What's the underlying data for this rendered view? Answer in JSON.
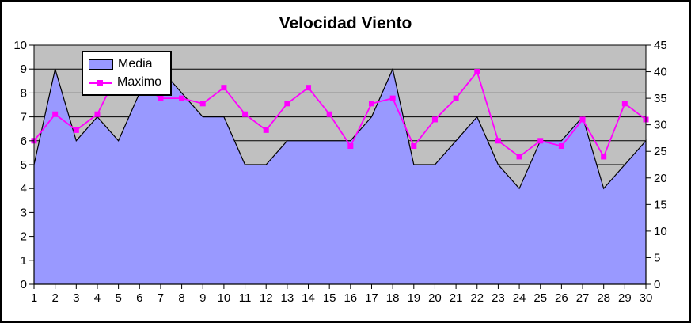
{
  "title": "Velocidad Viento",
  "legend": {
    "items": [
      {
        "label": "Media"
      },
      {
        "label": "Maximo"
      }
    ]
  },
  "colors": {
    "background": "#FFFFFF",
    "plot_background": "#C0C0C0",
    "grid": "#000000",
    "area_fill": "#9999FF",
    "area_outline": "#000000",
    "line": "#FF00FF",
    "text": "#000000"
  },
  "chart_data": {
    "type": "area",
    "title": "Velocidad Viento",
    "categories": [
      "1",
      "2",
      "3",
      "4",
      "5",
      "6",
      "7",
      "8",
      "9",
      "10",
      "11",
      "12",
      "13",
      "14",
      "15",
      "16",
      "17",
      "18",
      "19",
      "20",
      "21",
      "22",
      "23",
      "24",
      "25",
      "26",
      "27",
      "28",
      "29",
      "30"
    ],
    "series": [
      {
        "name": "Media",
        "type": "area",
        "axis": "left",
        "color": "#9999FF",
        "outline": "#000000",
        "values": [
          5,
          9,
          6,
          7,
          6,
          8,
          9,
          8,
          7,
          7,
          5,
          5,
          6,
          6,
          6,
          6,
          7,
          9,
          5,
          5,
          6,
          7,
          5,
          4,
          6,
          6,
          7,
          4,
          5,
          6
        ]
      },
      {
        "name": "Maximo",
        "type": "line",
        "axis": "right",
        "color": "#FF00FF",
        "marker": "square",
        "values": [
          27,
          32,
          29,
          32,
          40,
          38,
          35,
          35,
          34,
          37,
          32,
          29,
          34,
          37,
          32,
          26,
          34,
          35,
          26,
          31,
          35,
          40,
          27,
          24,
          27,
          26,
          31,
          24,
          34,
          31
        ]
      }
    ],
    "left_axis": {
      "min": 0,
      "max": 10,
      "step": 1
    },
    "right_axis": {
      "min": 0,
      "max": 45,
      "step": 5
    },
    "xlabel": "",
    "ylabel": "",
    "grid": "horizontal",
    "legend_position": "top-left-inside",
    "plot_background": "#C0C0C0"
  }
}
